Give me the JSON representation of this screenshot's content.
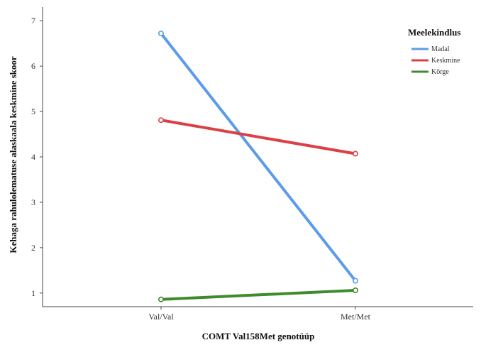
{
  "chart_data": {
    "type": "line",
    "categories": [
      "Val/Val",
      "Met/Met"
    ],
    "xlabel": "COMT Val158Met genotüüp",
    "ylabel": "Kehaga rahulolematuse alaskaala keskmine skoor",
    "y_ticks": [
      "1",
      "2",
      "3",
      "4",
      "5",
      "6",
      "7"
    ],
    "ylim": [
      0.7,
      7.3
    ],
    "grid": false,
    "legend": {
      "title": "Meelekindlus",
      "placement": "top-right"
    },
    "series": [
      {
        "name": "Madal",
        "values": [
          6.72,
          1.27
        ],
        "color": "#5b9bea"
      },
      {
        "name": "Keskmine",
        "values": [
          4.81,
          4.07
        ],
        "color": "#dc3f45"
      },
      {
        "name": "Kõrge",
        "values": [
          0.86,
          1.06
        ],
        "color": "#3c8c2e"
      }
    ]
  }
}
